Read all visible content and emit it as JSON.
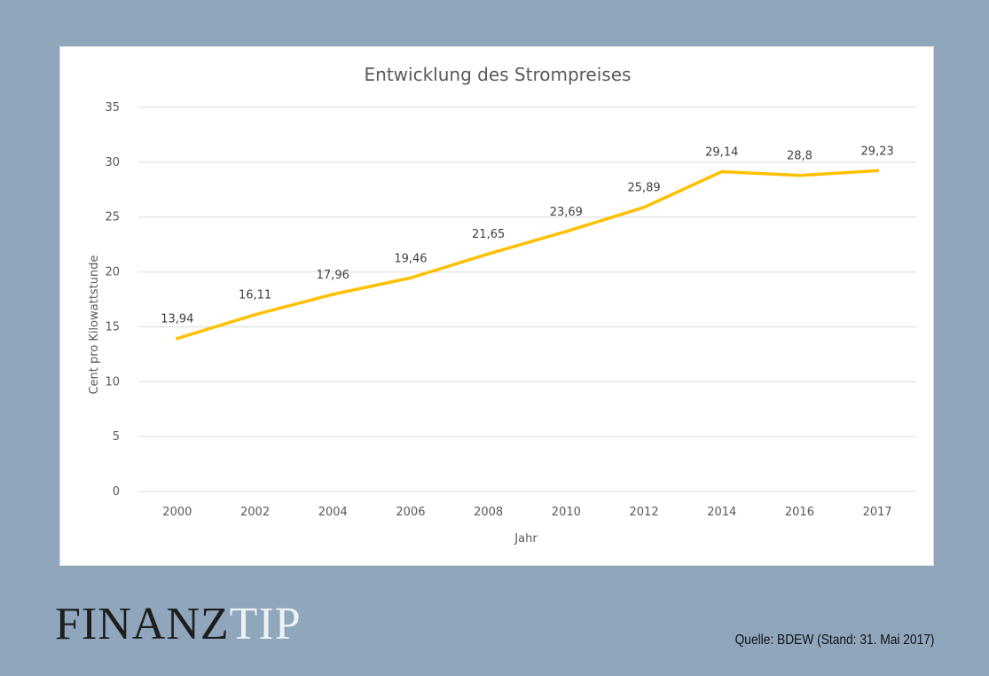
{
  "chart_data": {
    "type": "line",
    "title": "Entwicklung des Strompreises",
    "xlabel": "Jahr",
    "ylabel": "Cent pro Kilowattstunde",
    "categories": [
      "2000",
      "2002",
      "2004",
      "2006",
      "2008",
      "2010",
      "2012",
      "2014",
      "2016",
      "2017"
    ],
    "series": [
      {
        "values": [
          13.94,
          16.11,
          17.96,
          19.46,
          21.65,
          23.69,
          25.89,
          29.14,
          28.8,
          29.23
        ],
        "color": "#ffc000"
      }
    ],
    "data_labels": [
      "13,94",
      "16,11",
      "17,96",
      "19,46",
      "21,65",
      "23,69",
      "25,89",
      "29,14",
      "28,8",
      "29,23"
    ],
    "y_ticks": [
      0,
      5,
      10,
      15,
      20,
      25,
      30,
      35
    ],
    "ylim": [
      0,
      35
    ],
    "grid": true,
    "legend": "none"
  },
  "brand": {
    "part1": "FINANZ",
    "part2": "TIP"
  },
  "source": "Quelle: BDEW (Stand: 31. Mai 2017)"
}
